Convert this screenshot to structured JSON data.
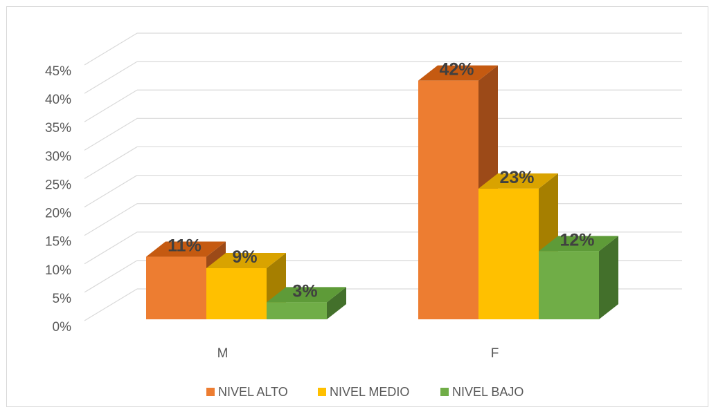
{
  "chart_data": {
    "type": "bar",
    "style": "3d-clustered-column",
    "categories": [
      "M",
      "F"
    ],
    "series": [
      {
        "name": "NIVEL ALTO",
        "values": [
          11,
          42
        ],
        "labels": [
          "11%",
          "42%"
        ],
        "color": "#ED7D31",
        "top_color": "#C55A11",
        "side_color": "#9C4A18"
      },
      {
        "name": "NIVEL MEDIO",
        "values": [
          9,
          23
        ],
        "labels": [
          "9%",
          "23%"
        ],
        "color": "#FFC000",
        "top_color": "#D9A300",
        "side_color": "#A67F00"
      },
      {
        "name": "NIVEL BAJO",
        "values": [
          3,
          12
        ],
        "labels": [
          "3%",
          "12%"
        ],
        "color": "#70AD47",
        "top_color": "#5E9B38",
        "side_color": "#43702B"
      }
    ],
    "y_ticks": [
      "0%",
      "5%",
      "10%",
      "15%",
      "20%",
      "25%",
      "30%",
      "35%",
      "40%",
      "45%"
    ],
    "ylim": [
      0,
      45
    ],
    "grid": true,
    "legend_position": "bottom",
    "gridline_color": "#d9d9d9",
    "text_color": "#595959",
    "label_color": "#404040"
  }
}
